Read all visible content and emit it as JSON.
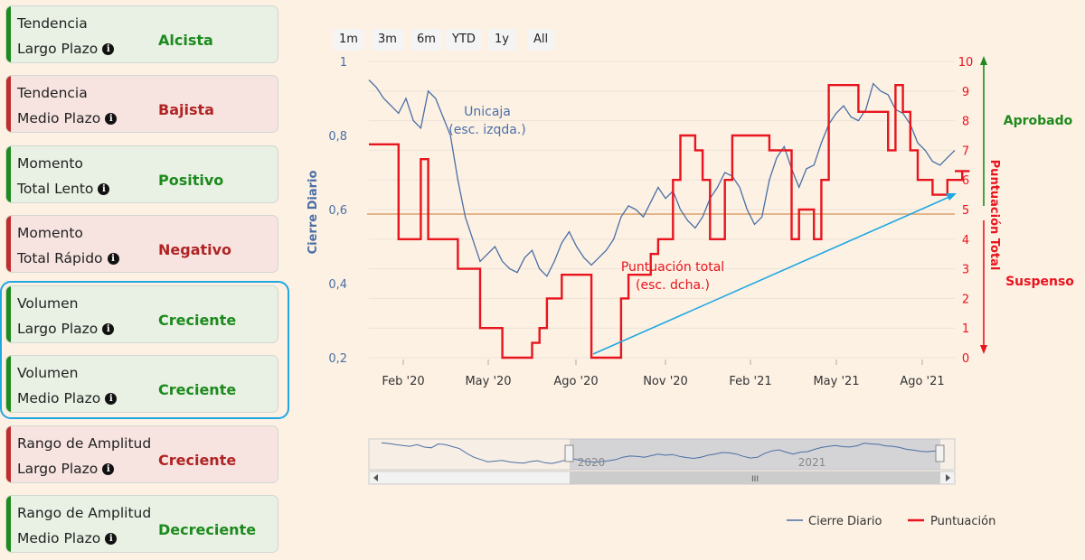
{
  "indicators": [
    {
      "line1": "Tendencia",
      "line2": "Largo Plazo",
      "value": "Alcista",
      "status": "positive"
    },
    {
      "line1": "Tendencia",
      "line2": "Medio Plazo",
      "value": "Bajista",
      "status": "negative"
    },
    {
      "line1": "Momento",
      "line2": "Total Lento",
      "value": "Positivo",
      "status": "positive"
    },
    {
      "line1": "Momento",
      "line2": "Total Rápido",
      "value": "Negativo",
      "status": "negative"
    },
    {
      "line1": "Volumen",
      "line2": "Largo Plazo",
      "value": "Creciente",
      "status": "positive"
    },
    {
      "line1": "Volumen",
      "line2": "Medio Plazo",
      "value": "Creciente",
      "status": "positive"
    },
    {
      "line1": "Rango de Amplitud",
      "line2": "Largo Plazo",
      "value": "Creciente",
      "status": "negative"
    },
    {
      "line1": "Rango de Amplitud",
      "line2": "Medio Plazo",
      "value": "Decreciente",
      "status": "positive"
    }
  ],
  "range_buttons": [
    "1m",
    "3m",
    "6m",
    "YTD",
    "1y",
    "All"
  ],
  "chart_data": {
    "type": "line",
    "x_range": [
      "2020-01-01",
      "2021-08-31"
    ],
    "x_ticks": [
      "Feb '20",
      "May '20",
      "Ago '20",
      "Nov '20",
      "Feb '21",
      "May '21",
      "Ago '21"
    ],
    "y_left": {
      "label": "Cierre Diario",
      "range": [
        0.2,
        1.0
      ],
      "ticks": [
        "0,2",
        "0,4",
        "0,6",
        "0,8",
        "1"
      ]
    },
    "y_right": {
      "label": "Puntuación Total",
      "range": [
        0,
        10
      ],
      "ticks": [
        "0",
        "1",
        "2",
        "3",
        "4",
        "5",
        "6",
        "7",
        "8",
        "9",
        "10"
      ]
    },
    "threshold": 5,
    "series": [
      {
        "name": "Cierre Diario",
        "axis": "left",
        "color": "#4a6fa5",
        "values": [
          0.95,
          0.93,
          0.9,
          0.88,
          0.86,
          0.9,
          0.84,
          0.82,
          0.92,
          0.9,
          0.85,
          0.8,
          0.68,
          0.58,
          0.52,
          0.46,
          0.48,
          0.5,
          0.46,
          0.44,
          0.43,
          0.47,
          0.49,
          0.44,
          0.42,
          0.46,
          0.51,
          0.54,
          0.5,
          0.47,
          0.45,
          0.47,
          0.49,
          0.52,
          0.58,
          0.61,
          0.6,
          0.58,
          0.62,
          0.66,
          0.63,
          0.65,
          0.6,
          0.57,
          0.55,
          0.58,
          0.63,
          0.66,
          0.7,
          0.69,
          0.66,
          0.6,
          0.56,
          0.58,
          0.68,
          0.74,
          0.77,
          0.71,
          0.66,
          0.71,
          0.72,
          0.78,
          0.83,
          0.86,
          0.88,
          0.85,
          0.84,
          0.87,
          0.94,
          0.92,
          0.91,
          0.87,
          0.86,
          0.83,
          0.78,
          0.76,
          0.73,
          0.72,
          0.74,
          0.76
        ],
        "labels": [
          "Unicaja",
          "(esc. izqda.)"
        ]
      },
      {
        "name": "Puntuación",
        "axis": "right",
        "color": "#e8141e",
        "values": [
          7.2,
          7.2,
          7.2,
          7.2,
          4.0,
          4.0,
          4.0,
          6.7,
          4.0,
          4.0,
          4.0,
          4.0,
          3.0,
          3.0,
          3.0,
          1.0,
          1.0,
          1.0,
          0.0,
          0.0,
          0.0,
          0.0,
          0.5,
          1.0,
          2.0,
          2.0,
          2.8,
          2.8,
          2.8,
          2.8,
          0.0,
          0.0,
          0.0,
          0.0,
          2.0,
          2.8,
          2.8,
          2.8,
          3.5,
          4.0,
          4.0,
          6.0,
          7.5,
          7.5,
          7.0,
          6.0,
          4.0,
          4.0,
          6.0,
          7.5,
          7.5,
          7.5,
          7.5,
          7.5,
          7.0,
          7.0,
          7.0,
          4.0,
          5.0,
          5.0,
          4.0,
          6.0,
          9.2,
          9.2,
          9.2,
          9.2,
          8.3,
          8.3,
          8.3,
          8.3,
          7.0,
          9.2,
          8.3,
          7.0,
          6.0,
          6.0,
          5.5,
          5.5,
          6.0,
          6.0,
          6.3,
          6.3
        ],
        "labels": [
          "Puntuación total",
          "(esc. dcha.)"
        ]
      }
    ],
    "side_labels": {
      "top": "Aprobado",
      "bottom": "Suspenso"
    },
    "navigator_year_labels": [
      "2020",
      "2021"
    ],
    "navigator_scroll_label": "III",
    "legend": [
      "Cierre Diario",
      "Puntuación"
    ]
  },
  "colors": {
    "positive": "#1d8a1d",
    "negative": "#b02424",
    "highlight": "#1ea7e1",
    "price": "#4a6fa5",
    "score": "#e8141e"
  }
}
